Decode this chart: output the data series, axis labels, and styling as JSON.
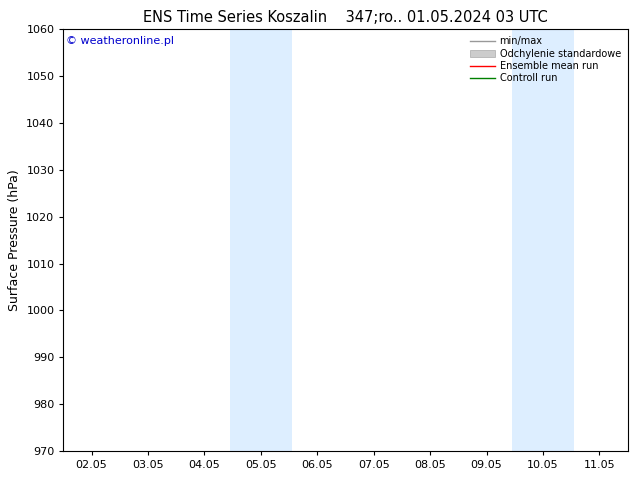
{
  "title_left": "ENS Time Series Koszalin",
  "title_right": "347;ro.. 01.05.2024 03 UTC",
  "ylabel": "Surface Pressure (hPa)",
  "ylim": [
    970,
    1060
  ],
  "yticks": [
    970,
    980,
    990,
    1000,
    1010,
    1020,
    1030,
    1040,
    1050,
    1060
  ],
  "xtick_labels": [
    "02.05",
    "03.05",
    "04.05",
    "05.05",
    "06.05",
    "07.05",
    "08.05",
    "09.05",
    "10.05",
    "11.05"
  ],
  "xtick_positions": [
    0,
    1,
    2,
    3,
    4,
    5,
    6,
    7,
    8,
    9
  ],
  "xlim": [
    -0.5,
    9.5
  ],
  "shade_bands": [
    {
      "xmin": 2.45,
      "xmax": 3.55
    },
    {
      "xmin": 7.45,
      "xmax": 8.55
    }
  ],
  "shade_color": "#ddeeff",
  "watermark": "© weatheronline.pl",
  "watermark_color": "#0000cc",
  "legend_labels": [
    "min/max",
    "Odchylenie standardowe",
    "Ensemble mean run",
    "Controll run"
  ],
  "legend_line_colors": [
    "#999999",
    "#cccccc",
    "#ff0000",
    "#008000"
  ],
  "background_color": "#ffffff",
  "axes_background": "#ffffff",
  "title_fontsize": 10.5,
  "tick_fontsize": 8,
  "ylabel_fontsize": 9
}
